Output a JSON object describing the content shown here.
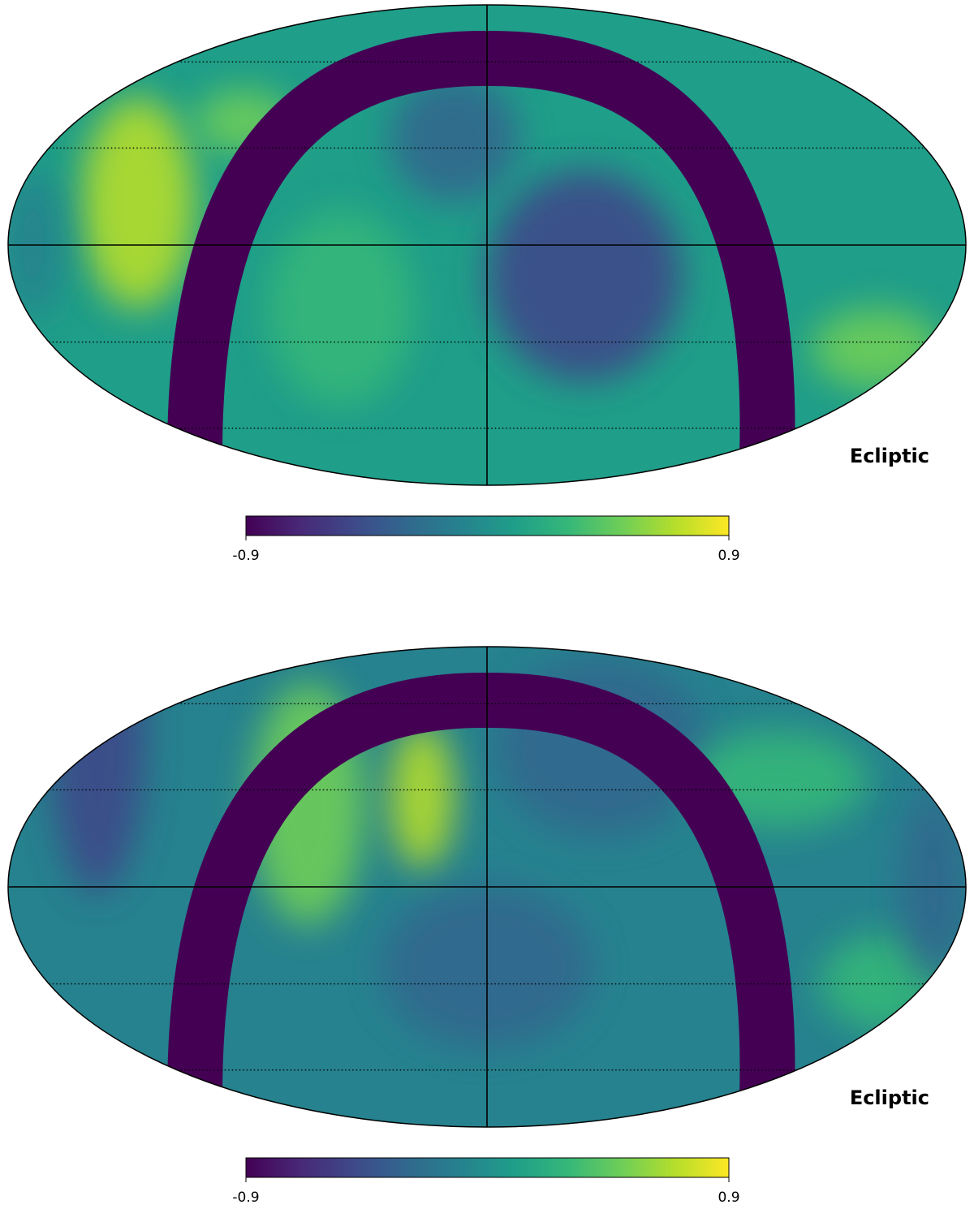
{
  "chart_data": [
    {
      "type": "mollweide",
      "coord_label": "Ecliptic",
      "graticule": true,
      "colorbar": {
        "colormap": "viridis",
        "lim": [
          -0.9,
          0.9
        ],
        "ticks": [
          -0.9,
          0.9
        ]
      }
    },
    {
      "type": "mollweide",
      "coord_label": "Ecliptic",
      "graticule": true,
      "colorbar": {
        "colormap": "viridis",
        "lim": [
          -0.9,
          0.9
        ],
        "ticks": [
          -0.9,
          0.9
        ]
      }
    }
  ]
}
